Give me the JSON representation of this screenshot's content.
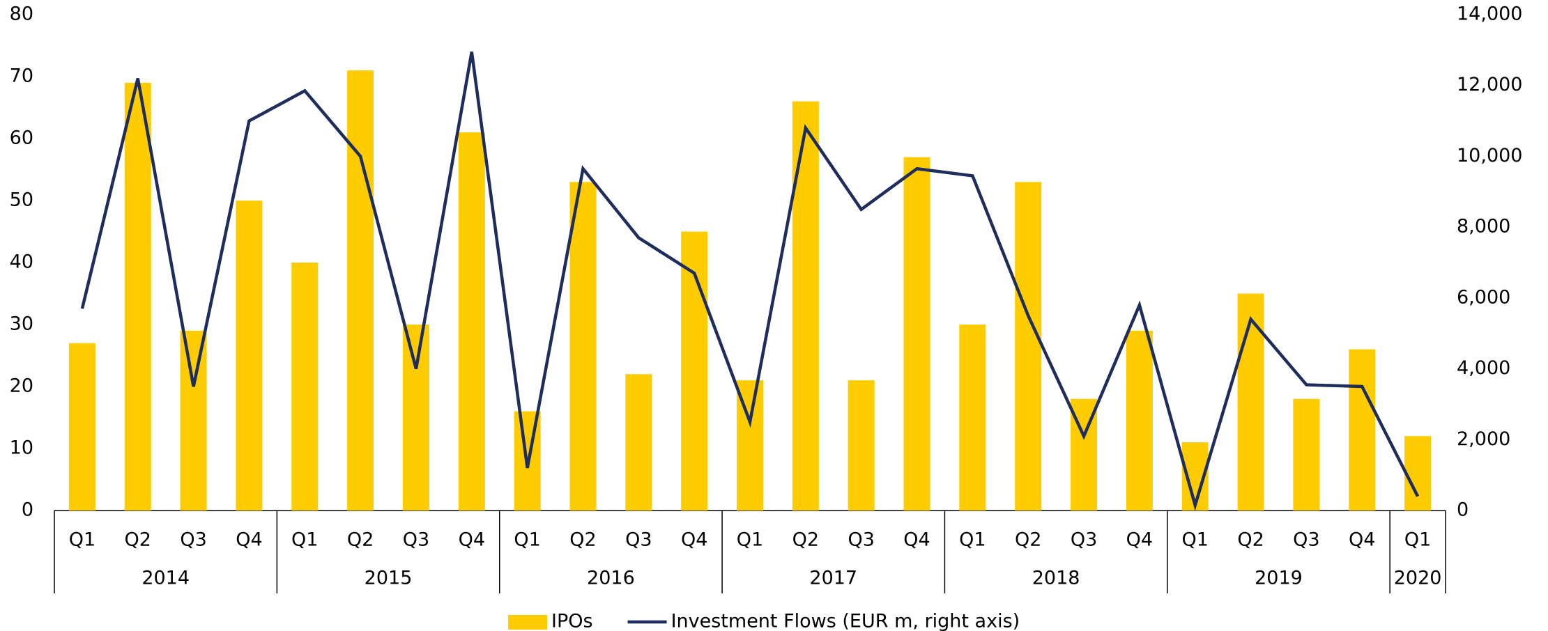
{
  "chart_data": {
    "type": "bar-line",
    "groups": [
      {
        "label": "2014",
        "categories": [
          "Q1",
          "Q2",
          "Q3",
          "Q4"
        ]
      },
      {
        "label": "2015",
        "categories": [
          "Q1",
          "Q2",
          "Q3",
          "Q4"
        ]
      },
      {
        "label": "2016",
        "categories": [
          "Q1",
          "Q2",
          "Q3",
          "Q4"
        ]
      },
      {
        "label": "2017",
        "categories": [
          "Q1",
          "Q2",
          "Q3",
          "Q4"
        ]
      },
      {
        "label": "2018",
        "categories": [
          "Q1",
          "Q2",
          "Q3",
          "Q4"
        ]
      },
      {
        "label": "2019",
        "categories": [
          "Q1",
          "Q2",
          "Q3",
          "Q4"
        ]
      },
      {
        "label": "2020",
        "categories": [
          "Q1"
        ]
      }
    ],
    "series": [
      {
        "name": "IPOs",
        "type": "bar",
        "color": "#ffcc00",
        "values": [
          27,
          69,
          29,
          50,
          40,
          71,
          30,
          61,
          16,
          53,
          22,
          45,
          21,
          66,
          21,
          57,
          30,
          53,
          18,
          29,
          11,
          35,
          18,
          26,
          12
        ]
      },
      {
        "name": "Investment Flows (EUR m, right axis)",
        "type": "line",
        "axis": "y2",
        "color": "#1f2d5c",
        "values": [
          5700,
          12200,
          3500,
          11000,
          11850,
          10000,
          4000,
          12950,
          1200,
          9650,
          7700,
          6700,
          2500,
          10800,
          8500,
          9650,
          9450,
          5500,
          2100,
          5800,
          150,
          5400,
          3550,
          3500,
          400
        ]
      }
    ],
    "ylim": [
      0,
      80
    ],
    "yticks": [
      0,
      10,
      20,
      30,
      40,
      50,
      60,
      70,
      80
    ],
    "y2lim": [
      0,
      14000
    ],
    "y2ticks": [
      0,
      {
        "value": 2000,
        "label": "2,000"
      },
      {
        "value": 4000,
        "label": "4,000"
      },
      {
        "value": 6000,
        "label": "6,000"
      },
      {
        "value": 8000,
        "label": "8,000"
      },
      {
        "value": 10000,
        "label": "10,000"
      },
      {
        "value": 12000,
        "label": "12,000"
      },
      {
        "value": 14000,
        "label": "14,000"
      }
    ]
  }
}
